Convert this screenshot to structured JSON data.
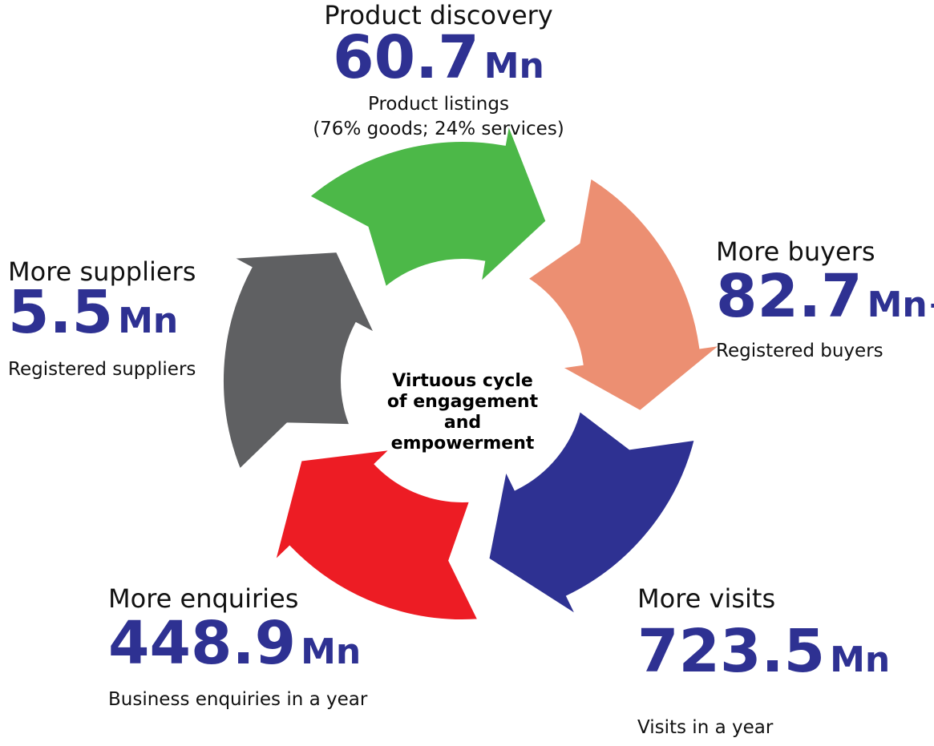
{
  "center": {
    "lines": [
      "Virtuous cycle",
      "of engagement",
      "and",
      "empowerment"
    ]
  },
  "nodes": [
    {
      "title": "Product discovery",
      "value": "60.7",
      "unit": "Mn",
      "description": [
        "Product listings",
        "(76% goods; 24% services)"
      ]
    },
    {
      "title": "More buyers",
      "value": "82.7",
      "unit": "Mn+",
      "description": [
        "Registered buyers"
      ]
    },
    {
      "title": "More visits",
      "value": "723.5",
      "unit": "Mn",
      "description": [
        "Visits in a year"
      ]
    },
    {
      "title": "More enquiries",
      "value": "448.9",
      "unit": "Mn",
      "description": [
        "Business enquiries in a year"
      ]
    },
    {
      "title": "More suppliers",
      "value": "5.5",
      "unit": "Mn",
      "description": [
        "Registered suppliers"
      ]
    }
  ]
}
